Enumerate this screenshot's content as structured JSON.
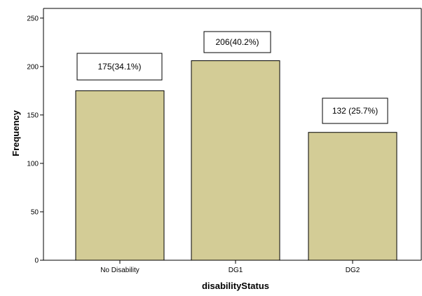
{
  "chart_data": {
    "type": "bar",
    "categories": [
      "No Disability",
      "DG1",
      "DG2"
    ],
    "values": [
      175,
      206,
      132
    ],
    "data_labels": [
      "175(34.1%)",
      "206(40.2%)",
      "132 (25.7%)"
    ],
    "xlabel": "disabilityStatus",
    "ylabel": "Frequency",
    "ylim": [
      0,
      260
    ],
    "yticks": [
      0,
      50,
      100,
      150,
      200,
      250
    ],
    "bar_color": "#d3cc96",
    "bar_stroke": "#000000",
    "grid": false,
    "legend": "none"
  }
}
